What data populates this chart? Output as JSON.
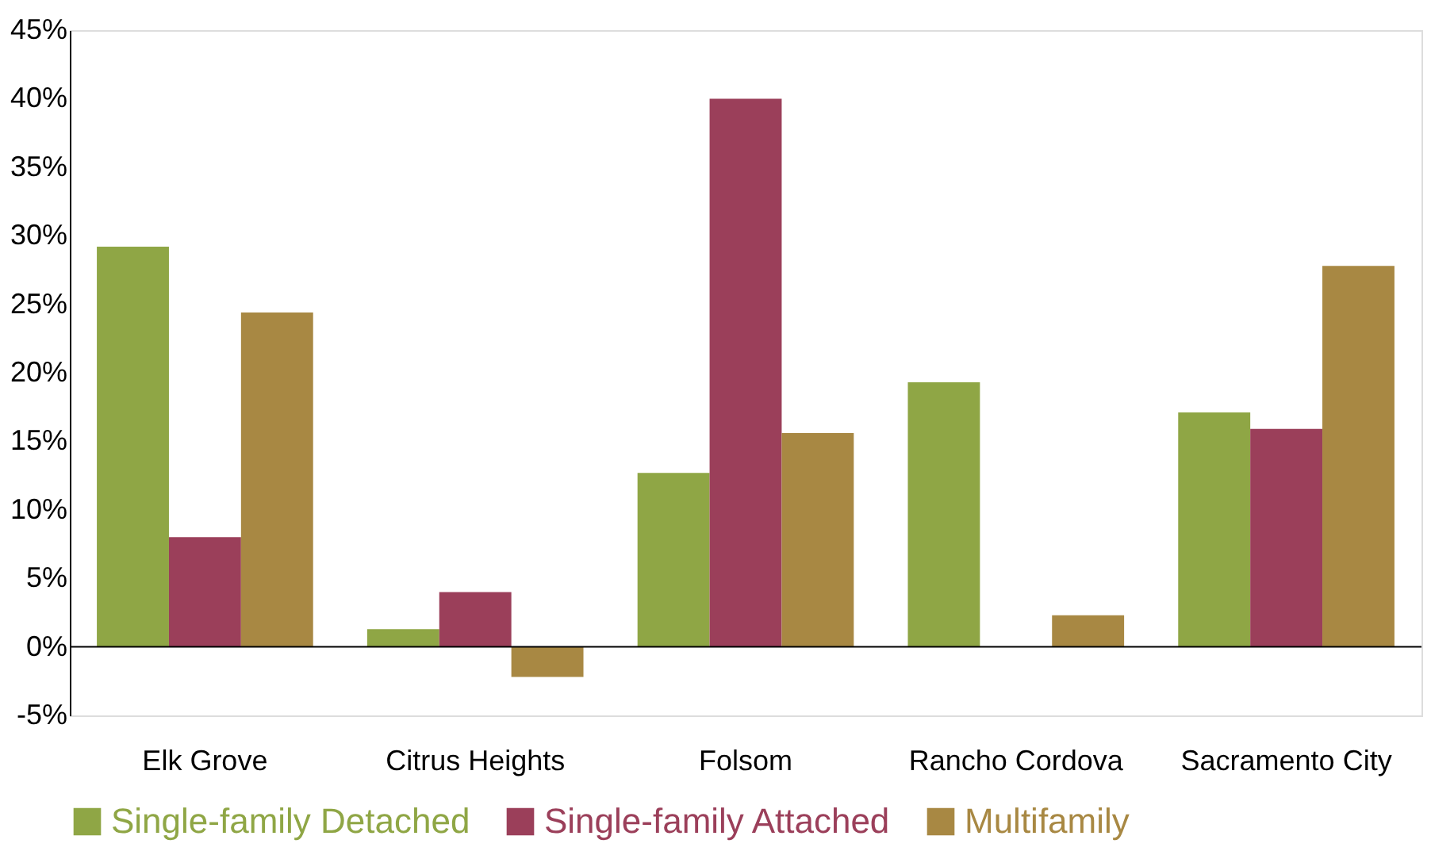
{
  "chart_data": {
    "type": "bar",
    "categories": [
      "Elk Grove",
      "Citrus Heights",
      "Folsom",
      "Rancho Cordova",
      "Sacramento City"
    ],
    "series": [
      {
        "name": "Single-family Detached",
        "color": "#8fa645",
        "values": [
          29.2,
          1.3,
          12.7,
          19.3,
          17.1
        ]
      },
      {
        "name": "Single-family Attached",
        "color": "#9b3f5a",
        "values": [
          8.0,
          4.0,
          40.0,
          null,
          15.9
        ]
      },
      {
        "name": "Multifamily",
        "color": "#a88843",
        "values": [
          24.4,
          -2.2,
          15.6,
          2.3,
          27.8
        ]
      }
    ],
    "ylim": [
      -5,
      45
    ],
    "yticks": [
      {
        "value": -5,
        "label": "-5%"
      },
      {
        "value": 0,
        "label": "0%"
      },
      {
        "value": 5,
        "label": "5%"
      },
      {
        "value": 10,
        "label": "10%"
      },
      {
        "value": 15,
        "label": "15%"
      },
      {
        "value": 20,
        "label": "20%"
      },
      {
        "value": 25,
        "label": "25%"
      },
      {
        "value": 30,
        "label": "30%"
      },
      {
        "value": 35,
        "label": "35%"
      },
      {
        "value": 40,
        "label": "40%"
      },
      {
        "value": 45,
        "label": "45%"
      }
    ],
    "ref_lines": [
      {
        "axis": "y",
        "value": 0,
        "color": "#000000"
      }
    ],
    "grid": false,
    "legend": "bottom"
  }
}
